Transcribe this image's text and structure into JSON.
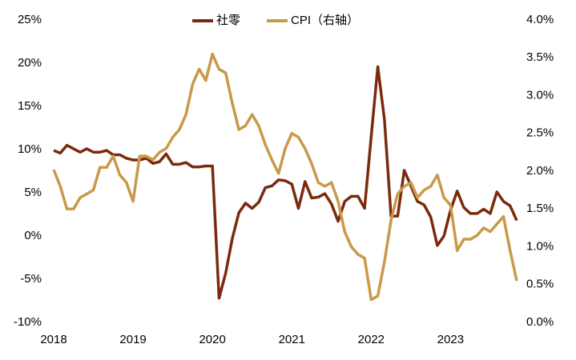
{
  "chart_data": {
    "type": "line",
    "categories": [
      "2018",
      null,
      null,
      null,
      null,
      null,
      null,
      null,
      null,
      null,
      null,
      null,
      "2019",
      null,
      null,
      null,
      null,
      null,
      null,
      null,
      null,
      null,
      null,
      null,
      "2020",
      null,
      null,
      null,
      null,
      null,
      null,
      null,
      null,
      null,
      null,
      null,
      "2021",
      null,
      null,
      null,
      null,
      null,
      null,
      null,
      null,
      null,
      null,
      null,
      "2022",
      null,
      null,
      null,
      null,
      null,
      null,
      null,
      null,
      null,
      null,
      null,
      "2023",
      null,
      null,
      null,
      null,
      null,
      null,
      null,
      null,
      null,
      null
    ],
    "series": [
      {
        "name": "社零",
        "color": "#7b2a0e",
        "values": [
          9.9,
          9.6,
          10.5,
          10.1,
          9.7,
          10.1,
          9.7,
          9.7,
          9.9,
          9.4,
          9.4,
          9.0,
          8.8,
          8.8,
          9.0,
          8.4,
          8.6,
          9.5,
          8.3,
          8.3,
          8.5,
          8.0,
          8.0,
          8.1,
          8.1,
          -7.2,
          -4.3,
          -0.3,
          2.7,
          3.8,
          3.2,
          3.9,
          5.6,
          5.8,
          6.5,
          6.4,
          6.0,
          3.2,
          6.3,
          4.4,
          4.5,
          4.9,
          3.7,
          1.7,
          4.0,
          4.6,
          4.6,
          3.2,
          11.5,
          19.6,
          13.5,
          2.3,
          2.3,
          7.6,
          5.8,
          4.0,
          3.6,
          2.2,
          -1.1,
          0.0,
          3.0,
          5.2,
          3.3,
          2.6,
          2.6,
          3.1,
          2.6,
          5.1,
          4.0,
          3.5,
          1.8
        ]
      },
      {
        "name": "CPI（右轴）",
        "color": "#c9994a",
        "axis": "y2",
        "values": [
          2.02,
          1.8,
          1.5,
          1.5,
          1.65,
          1.7,
          1.75,
          2.05,
          2.05,
          2.2,
          1.95,
          1.85,
          1.6,
          2.2,
          2.2,
          2.15,
          2.25,
          2.3,
          2.45,
          2.55,
          2.75,
          3.15,
          3.35,
          3.2,
          3.55,
          3.35,
          3.3,
          2.9,
          2.55,
          2.6,
          2.75,
          2.6,
          2.35,
          2.15,
          1.97,
          2.3,
          2.5,
          2.45,
          2.3,
          2.1,
          1.85,
          1.8,
          1.85,
          1.6,
          1.2,
          1.0,
          0.9,
          0.85,
          0.3,
          0.35,
          0.8,
          1.35,
          1.7,
          1.8,
          1.85,
          1.65,
          1.75,
          1.8,
          1.95,
          1.65,
          1.55,
          0.95,
          1.1,
          1.1,
          1.15,
          1.25,
          1.2,
          1.3,
          1.4,
          0.95,
          0.55
        ]
      }
    ],
    "ylim": [
      -10,
      25
    ],
    "yticks": [
      {
        "value": -10,
        "label": "-10%"
      },
      {
        "value": -5,
        "label": "-5%"
      },
      {
        "value": 0,
        "label": "0%"
      },
      {
        "value": 5,
        "label": "5%"
      },
      {
        "value": 10,
        "label": "10%"
      },
      {
        "value": 15,
        "label": "15%"
      },
      {
        "value": 20,
        "label": "20%"
      },
      {
        "value": 25,
        "label": "25%"
      }
    ],
    "y2lim": [
      0,
      4
    ],
    "y2ticks": [
      {
        "value": 0,
        "label": "0.0%"
      },
      {
        "value": 0.5,
        "label": "0.5%"
      },
      {
        "value": 1,
        "label": "1.0%"
      },
      {
        "value": 1.5,
        "label": "1.5%"
      },
      {
        "value": 2,
        "label": "2.0%"
      },
      {
        "value": 2.5,
        "label": "2.5%"
      },
      {
        "value": 3,
        "label": "3.0%"
      },
      {
        "value": 3.5,
        "label": "3.5%"
      },
      {
        "value": 4,
        "label": "4.0%"
      }
    ],
    "legend": "top"
  }
}
